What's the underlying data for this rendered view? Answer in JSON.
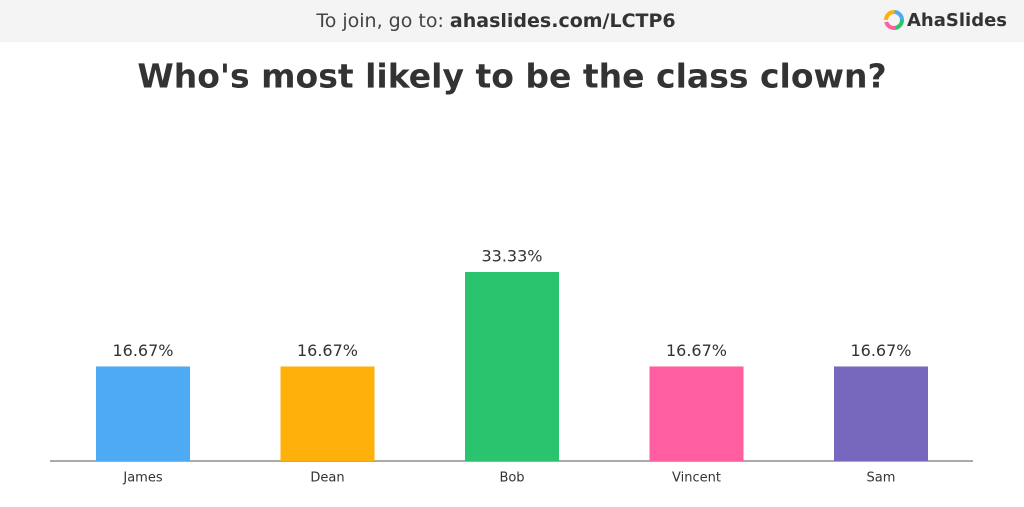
{
  "header": {
    "join_text": "To join, go to:",
    "join_url": "ahaslides.com/LCTP6",
    "brand": "AhaSlides"
  },
  "chart_data": {
    "type": "bar",
    "title": "Who's most likely to be the class clown?",
    "categories": [
      "James",
      "Dean",
      "Bob",
      "Vincent",
      "Sam"
    ],
    "values": [
      16.67,
      16.67,
      33.33,
      16.67,
      16.67
    ],
    "value_labels": [
      "16.67%",
      "16.67%",
      "33.33%",
      "16.67%",
      "16.67%"
    ],
    "colors": [
      "#4dabf5",
      "#ffb00a",
      "#2ac46f",
      "#ff5ea0",
      "#7767bd"
    ]
  }
}
